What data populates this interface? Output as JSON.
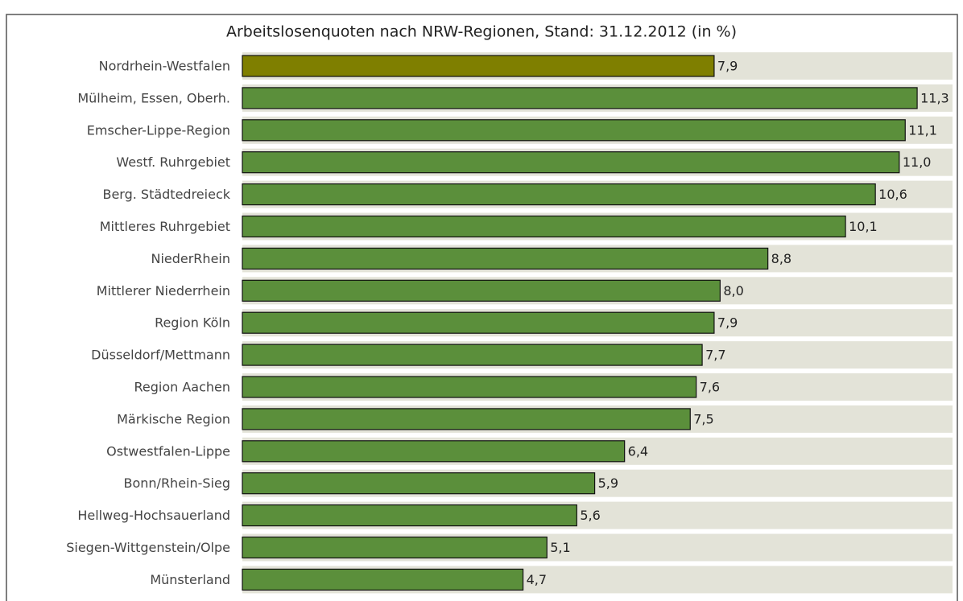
{
  "chart_data": {
    "type": "bar",
    "orientation": "horizontal",
    "title": "Arbeitslosenquoten nach NRW-Regionen, Stand: 31.12.2012 (in %)",
    "categories": [
      "Nordrhein-Westfalen",
      "Mülheim, Essen, Oberh.",
      "Emscher-Lippe-Region",
      "Westf. Ruhrgebiet",
      "Berg. Städtedreieck",
      "Mittleres Ruhrgebiet",
      "NiederRhein",
      "Mittlerer Niederrhein",
      "Region Köln",
      "Düsseldorf/Mettmann",
      "Region Aachen",
      "Märkische Region",
      "Ostwestfalen-Lippe",
      "Bonn/Rhein-Sieg",
      "Hellweg-Hochsauerland",
      "Siegen-Wittgenstein/Olpe",
      "Münsterland"
    ],
    "values": [
      7.9,
      11.3,
      11.1,
      11.0,
      10.6,
      10.1,
      8.8,
      8.0,
      7.9,
      7.7,
      7.6,
      7.5,
      6.4,
      5.9,
      5.6,
      5.1,
      4.7
    ],
    "value_labels": [
      "7,9",
      "11,3",
      "11,1",
      "11,0",
      "10,6",
      "10,1",
      "8,8",
      "8,0",
      "7,9",
      "7,7",
      "7,6",
      "7,5",
      "6,4",
      "5,9",
      "5,6",
      "5,1",
      "4,7"
    ],
    "colors": [
      "#7f7f00",
      "#5b8f3b",
      "#5b8f3b",
      "#5b8f3b",
      "#5b8f3b",
      "#5b8f3b",
      "#5b8f3b",
      "#5b8f3b",
      "#5b8f3b",
      "#5b8f3b",
      "#5b8f3b",
      "#5b8f3b",
      "#5b8f3b",
      "#5b8f3b",
      "#5b8f3b",
      "#5b8f3b",
      "#5b8f3b"
    ],
    "xlim": [
      0,
      12
    ]
  }
}
